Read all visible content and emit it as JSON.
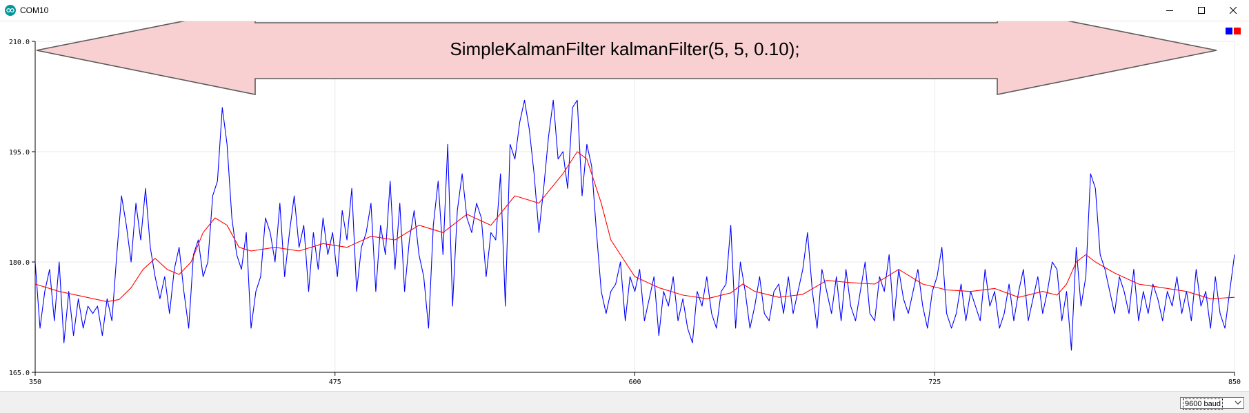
{
  "window": {
    "title": "COM10",
    "icon": "arduino-icon",
    "controls": [
      "minimize-icon",
      "maximize-icon",
      "close-icon"
    ]
  },
  "annotation": {
    "text": "SimpleKalmanFilter kalmanFilter(5, 5, 0.10);",
    "shape": "double-arrow",
    "fill": "#f8d0d2"
  },
  "colors": {
    "raw": "#0000ff",
    "filtered": "#ff0000",
    "grid": "#e8e8e8",
    "axis": "#000000"
  },
  "chart_data": {
    "type": "line",
    "xlim": [
      350,
      850
    ],
    "ylim": [
      165,
      210
    ],
    "x_ticks": [
      "350",
      "475",
      "600",
      "725",
      "850"
    ],
    "y_ticks": [
      "210.0",
      "195.0",
      "180.0",
      "165.0"
    ],
    "x_tick_values": [
      350,
      475,
      600,
      725,
      850
    ],
    "y_tick_values": [
      210,
      195,
      180,
      165
    ],
    "grid": true,
    "legend": "top-right",
    "series": [
      {
        "color": "#0000ff",
        "points": [
          [
            350,
            180
          ],
          [
            352,
            171
          ],
          [
            354,
            176
          ],
          [
            356,
            179
          ],
          [
            358,
            172
          ],
          [
            360,
            180
          ],
          [
            362,
            169
          ],
          [
            364,
            176
          ],
          [
            366,
            170
          ],
          [
            368,
            175
          ],
          [
            370,
            171
          ],
          [
            372,
            174
          ],
          [
            374,
            173
          ],
          [
            376,
            174
          ],
          [
            378,
            170
          ],
          [
            380,
            175
          ],
          [
            382,
            172
          ],
          [
            384,
            181
          ],
          [
            386,
            189
          ],
          [
            388,
            185
          ],
          [
            390,
            180
          ],
          [
            392,
            188
          ],
          [
            394,
            183
          ],
          [
            396,
            190
          ],
          [
            398,
            182
          ],
          [
            400,
            178
          ],
          [
            402,
            175
          ],
          [
            404,
            178
          ],
          [
            406,
            173
          ],
          [
            408,
            179
          ],
          [
            410,
            182
          ],
          [
            412,
            176
          ],
          [
            414,
            171
          ],
          [
            416,
            181
          ],
          [
            418,
            183
          ],
          [
            420,
            178
          ],
          [
            422,
            180
          ],
          [
            424,
            189
          ],
          [
            426,
            191
          ],
          [
            428,
            201
          ],
          [
            430,
            196
          ],
          [
            432,
            186
          ],
          [
            434,
            181
          ],
          [
            436,
            179
          ],
          [
            438,
            184
          ],
          [
            440,
            171
          ],
          [
            442,
            176
          ],
          [
            444,
            178
          ],
          [
            446,
            186
          ],
          [
            448,
            184
          ],
          [
            450,
            180
          ],
          [
            452,
            188
          ],
          [
            454,
            178
          ],
          [
            456,
            184
          ],
          [
            458,
            189
          ],
          [
            460,
            182
          ],
          [
            462,
            185
          ],
          [
            464,
            176
          ],
          [
            466,
            184
          ],
          [
            468,
            179
          ],
          [
            470,
            186
          ],
          [
            472,
            181
          ],
          [
            474,
            184
          ],
          [
            476,
            178
          ],
          [
            478,
            187
          ],
          [
            480,
            183
          ],
          [
            482,
            190
          ],
          [
            484,
            176
          ],
          [
            486,
            182
          ],
          [
            488,
            184
          ],
          [
            490,
            188
          ],
          [
            492,
            176
          ],
          [
            494,
            185
          ],
          [
            496,
            181
          ],
          [
            498,
            191
          ],
          [
            500,
            179
          ],
          [
            502,
            188
          ],
          [
            504,
            176
          ],
          [
            506,
            183
          ],
          [
            508,
            187
          ],
          [
            510,
            181
          ],
          [
            512,
            178
          ],
          [
            514,
            171
          ],
          [
            516,
            185
          ],
          [
            518,
            191
          ],
          [
            520,
            181
          ],
          [
            522,
            196
          ],
          [
            524,
            174
          ],
          [
            526,
            187
          ],
          [
            528,
            192
          ],
          [
            530,
            186
          ],
          [
            532,
            184
          ],
          [
            534,
            188
          ],
          [
            536,
            186
          ],
          [
            538,
            178
          ],
          [
            540,
            184
          ],
          [
            542,
            183
          ],
          [
            544,
            192
          ],
          [
            546,
            174
          ],
          [
            548,
            196
          ],
          [
            550,
            194
          ],
          [
            552,
            199
          ],
          [
            554,
            202
          ],
          [
            556,
            198
          ],
          [
            558,
            192
          ],
          [
            560,
            184
          ],
          [
            562,
            190
          ],
          [
            564,
            197
          ],
          [
            566,
            202
          ],
          [
            568,
            194
          ],
          [
            570,
            195
          ],
          [
            572,
            190
          ],
          [
            574,
            201
          ],
          [
            576,
            202
          ],
          [
            578,
            189
          ],
          [
            580,
            196
          ],
          [
            582,
            193
          ],
          [
            584,
            184
          ],
          [
            586,
            176
          ],
          [
            588,
            173
          ],
          [
            590,
            176
          ],
          [
            592,
            177
          ],
          [
            594,
            180
          ],
          [
            596,
            172
          ],
          [
            598,
            178
          ],
          [
            600,
            176
          ],
          [
            602,
            179
          ],
          [
            604,
            172
          ],
          [
            606,
            175
          ],
          [
            608,
            178
          ],
          [
            610,
            170
          ],
          [
            612,
            176
          ],
          [
            614,
            174
          ],
          [
            616,
            178
          ],
          [
            618,
            172
          ],
          [
            620,
            175
          ],
          [
            622,
            171
          ],
          [
            624,
            169
          ],
          [
            626,
            176
          ],
          [
            628,
            174
          ],
          [
            630,
            178
          ],
          [
            632,
            173
          ],
          [
            634,
            171
          ],
          [
            636,
            176
          ],
          [
            638,
            177
          ],
          [
            640,
            185
          ],
          [
            642,
            171
          ],
          [
            644,
            180
          ],
          [
            646,
            176
          ],
          [
            648,
            171
          ],
          [
            650,
            174
          ],
          [
            652,
            178
          ],
          [
            654,
            173
          ],
          [
            656,
            172
          ],
          [
            658,
            176
          ],
          [
            660,
            177
          ],
          [
            662,
            173
          ],
          [
            664,
            178
          ],
          [
            666,
            173
          ],
          [
            668,
            176
          ],
          [
            670,
            179
          ],
          [
            672,
            184
          ],
          [
            674,
            176
          ],
          [
            676,
            171
          ],
          [
            678,
            179
          ],
          [
            680,
            176
          ],
          [
            682,
            173
          ],
          [
            684,
            178
          ],
          [
            686,
            172
          ],
          [
            688,
            179
          ],
          [
            690,
            174
          ],
          [
            692,
            172
          ],
          [
            694,
            176
          ],
          [
            696,
            180
          ],
          [
            698,
            173
          ],
          [
            700,
            172
          ],
          [
            702,
            178
          ],
          [
            704,
            176
          ],
          [
            706,
            181
          ],
          [
            708,
            172
          ],
          [
            710,
            179
          ],
          [
            712,
            175
          ],
          [
            714,
            173
          ],
          [
            716,
            176
          ],
          [
            718,
            179
          ],
          [
            720,
            174
          ],
          [
            722,
            171
          ],
          [
            724,
            176
          ],
          [
            726,
            178
          ],
          [
            728,
            182
          ],
          [
            730,
            173
          ],
          [
            732,
            171
          ],
          [
            734,
            173
          ],
          [
            736,
            177
          ],
          [
            738,
            172
          ],
          [
            740,
            176
          ],
          [
            742,
            174
          ],
          [
            744,
            172
          ],
          [
            746,
            179
          ],
          [
            748,
            174
          ],
          [
            750,
            176
          ],
          [
            752,
            171
          ],
          [
            754,
            173
          ],
          [
            756,
            177
          ],
          [
            758,
            172
          ],
          [
            760,
            176
          ],
          [
            762,
            179
          ],
          [
            764,
            172
          ],
          [
            766,
            175
          ],
          [
            768,
            178
          ],
          [
            770,
            173
          ],
          [
            772,
            176
          ],
          [
            774,
            180
          ],
          [
            776,
            179
          ],
          [
            778,
            172
          ],
          [
            780,
            176
          ],
          [
            782,
            168
          ],
          [
            784,
            182
          ],
          [
            786,
            174
          ],
          [
            788,
            178
          ],
          [
            790,
            192
          ],
          [
            792,
            190
          ],
          [
            794,
            181
          ],
          [
            796,
            179
          ],
          [
            798,
            176
          ],
          [
            800,
            173
          ],
          [
            802,
            178
          ],
          [
            804,
            176
          ],
          [
            806,
            173
          ],
          [
            808,
            179
          ],
          [
            810,
            172
          ],
          [
            812,
            176
          ],
          [
            814,
            173
          ],
          [
            816,
            177
          ],
          [
            818,
            175
          ],
          [
            820,
            172
          ],
          [
            822,
            176
          ],
          [
            824,
            174
          ],
          [
            826,
            178
          ],
          [
            828,
            173
          ],
          [
            830,
            176
          ],
          [
            832,
            172
          ],
          [
            834,
            179
          ],
          [
            836,
            174
          ],
          [
            838,
            176
          ],
          [
            840,
            171
          ],
          [
            842,
            178
          ],
          [
            844,
            173
          ],
          [
            846,
            171
          ],
          [
            848,
            176
          ],
          [
            850,
            181
          ]
        ]
      },
      {
        "color": "#ff0000",
        "points": [
          [
            350,
            177
          ],
          [
            360,
            176
          ],
          [
            370,
            175.3
          ],
          [
            380,
            174.6
          ],
          [
            385,
            174.9
          ],
          [
            390,
            176.5
          ],
          [
            395,
            179
          ],
          [
            400,
            180.5
          ],
          [
            405,
            179
          ],
          [
            410,
            178.3
          ],
          [
            415,
            180
          ],
          [
            420,
            184
          ],
          [
            425,
            186
          ],
          [
            430,
            185
          ],
          [
            435,
            182
          ],
          [
            440,
            181.5
          ],
          [
            450,
            182
          ],
          [
            460,
            181.5
          ],
          [
            470,
            182.5
          ],
          [
            480,
            182
          ],
          [
            490,
            183.5
          ],
          [
            500,
            183
          ],
          [
            510,
            185
          ],
          [
            520,
            184
          ],
          [
            530,
            186.5
          ],
          [
            540,
            185
          ],
          [
            550,
            189
          ],
          [
            560,
            188
          ],
          [
            570,
            192
          ],
          [
            576,
            195
          ],
          [
            580,
            194
          ],
          [
            586,
            188
          ],
          [
            590,
            183
          ],
          [
            596,
            180
          ],
          [
            600,
            178
          ],
          [
            610,
            176.5
          ],
          [
            620,
            175.5
          ],
          [
            630,
            175
          ],
          [
            640,
            175.8
          ],
          [
            645,
            177
          ],
          [
            650,
            176
          ],
          [
            660,
            175.2
          ],
          [
            670,
            175.6
          ],
          [
            680,
            177.5
          ],
          [
            690,
            177.2
          ],
          [
            700,
            177
          ],
          [
            710,
            179
          ],
          [
            720,
            177
          ],
          [
            730,
            176.2
          ],
          [
            740,
            176
          ],
          [
            750,
            176.4
          ],
          [
            760,
            175.2
          ],
          [
            770,
            176
          ],
          [
            776,
            175.5
          ],
          [
            780,
            177
          ],
          [
            784,
            180
          ],
          [
            788,
            181
          ],
          [
            792,
            180
          ],
          [
            800,
            178.5
          ],
          [
            810,
            177
          ],
          [
            820,
            176.5
          ],
          [
            830,
            176
          ],
          [
            840,
            175
          ],
          [
            850,
            175.2
          ]
        ]
      }
    ]
  },
  "statusbar": {
    "baud": "9600 baud"
  }
}
